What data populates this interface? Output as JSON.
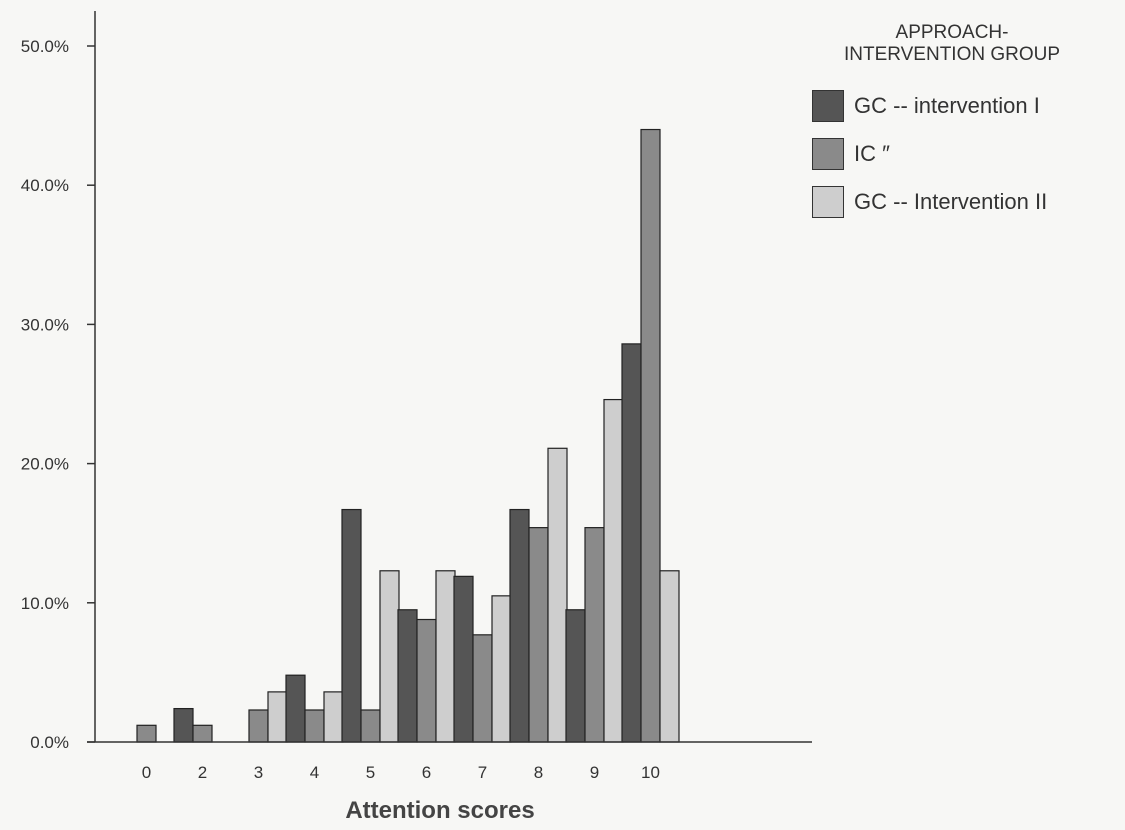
{
  "chart_data": {
    "type": "bar",
    "title": "",
    "xlabel": "Attention scores",
    "ylabel": "",
    "categories": [
      "0",
      "2",
      "3",
      "4",
      "5",
      "6",
      "7",
      "8",
      "9",
      "10"
    ],
    "series": [
      {
        "name": "GC -- intervention I",
        "color": "#555555",
        "values": [
          0,
          2.4,
          0,
          4.8,
          16.7,
          9.5,
          11.9,
          16.7,
          9.5,
          28.6
        ]
      },
      {
        "name": "IC ″",
        "color": "#8a8a8a",
        "values": [
          1.2,
          1.2,
          2.3,
          2.3,
          2.3,
          8.8,
          7.7,
          15.4,
          15.4,
          44.0
        ]
      },
      {
        "name": "GC -- Intervention II",
        "color": "#cecece",
        "values": [
          0,
          0,
          3.6,
          3.6,
          12.3,
          12.3,
          10.5,
          21.1,
          24.6,
          12.3
        ]
      }
    ],
    "ylim": [
      0,
      50
    ],
    "yticks": [
      "0.0%",
      "10.0%",
      "20.0%",
      "30.0%",
      "40.0%",
      "50.0%"
    ],
    "grid": false,
    "legend": {
      "position": "top-right",
      "title": "APPROACH-INTERVENTION GROUP"
    }
  }
}
